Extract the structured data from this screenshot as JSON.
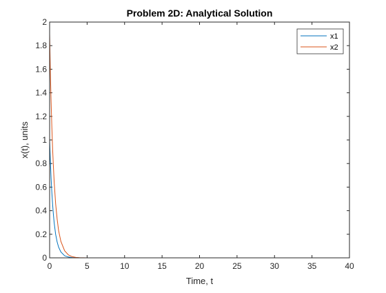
{
  "chart_data": {
    "type": "line",
    "title": "Problem 2D: Analytical Solution",
    "xlabel": "Time, t",
    "ylabel": "x(t), units",
    "xlim": [
      0,
      40
    ],
    "ylim": [
      0,
      2
    ],
    "xticks": [
      0,
      5,
      10,
      15,
      20,
      25,
      30,
      35,
      40
    ],
    "yticks": [
      0,
      0.2,
      0.4,
      0.6,
      0.8,
      1,
      1.2,
      1.4,
      1.6,
      1.8,
      2
    ],
    "grid": false,
    "legend_position": "top-right",
    "series": [
      {
        "name": "x1",
        "color": "#0072BD",
        "x": [
          0,
          0.1,
          0.2,
          0.3,
          0.4,
          0.5,
          0.6,
          0.8,
          1.0,
          1.2,
          1.5,
          2.0,
          2.5,
          3.0,
          4.0,
          5.0,
          10,
          20,
          30,
          40
        ],
        "y": [
          1.0,
          0.82,
          0.67,
          0.55,
          0.45,
          0.37,
          0.3,
          0.2,
          0.135,
          0.09,
          0.05,
          0.018,
          0.007,
          0.002,
          0.0003,
          0,
          0,
          0,
          0,
          0
        ]
      },
      {
        "name": "x2",
        "color": "#D95319",
        "x": [
          0,
          0.1,
          0.2,
          0.3,
          0.4,
          0.5,
          0.6,
          0.8,
          1.0,
          1.2,
          1.5,
          2.0,
          2.5,
          3.0,
          3.5,
          4.0,
          5.0,
          10,
          20,
          30,
          40
        ],
        "y": [
          1.9,
          1.57,
          1.32,
          1.1,
          0.92,
          0.78,
          0.65,
          0.46,
          0.33,
          0.23,
          0.14,
          0.06,
          0.025,
          0.01,
          0.004,
          0.0015,
          0,
          0,
          0,
          0,
          0
        ]
      }
    ]
  }
}
